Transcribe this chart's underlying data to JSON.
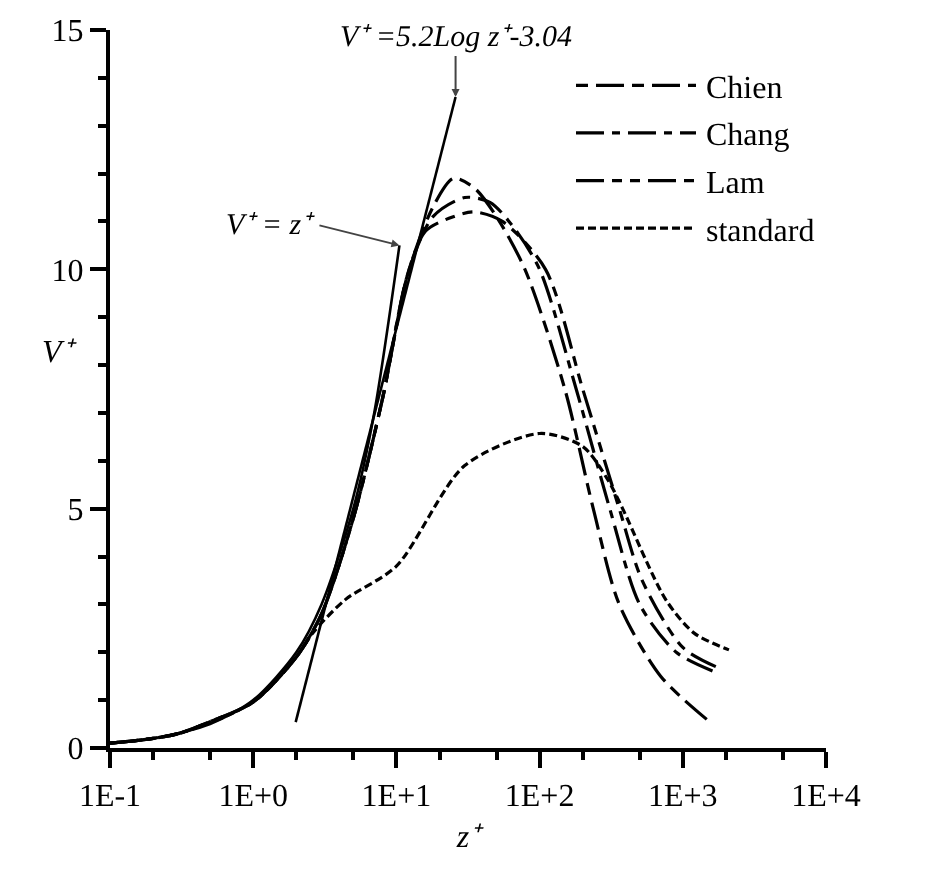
{
  "chart_data": {
    "type": "line",
    "xlabel": "z⁺",
    "ylabel": "V⁺",
    "log": "x",
    "xlim": [
      0.1,
      10000
    ],
    "ylim": [
      0,
      15
    ],
    "xticks": [
      {
        "value": 0.1,
        "label": "1E-1"
      },
      {
        "value": 1,
        "label": "1E+0"
      },
      {
        "value": 10,
        "label": "1E+1"
      },
      {
        "value": 100,
        "label": "1E+2"
      },
      {
        "value": 1000,
        "label": "1E+3"
      },
      {
        "value": 10000,
        "label": "1E+4"
      }
    ],
    "yticks": [
      0,
      5,
      10,
      15
    ],
    "grid": false,
    "legend": "top right",
    "marker": "none",
    "line_style": "dashed",
    "series": [
      {
        "name": "Chien",
        "color": "#000000",
        "x": [
          0.1,
          0.2,
          0.3,
          0.5,
          1,
          2,
          3,
          5,
          8,
          12,
          18,
          25,
          35,
          50,
          79,
          150,
          237,
          360,
          700,
          1480
        ],
        "values": [
          0.1,
          0.2,
          0.3,
          0.55,
          0.96,
          1.9,
          2.8,
          4.8,
          7.3,
          9.9,
          11.3,
          11.9,
          11.7,
          11.1,
          10,
          7.5,
          5,
          3,
          1.5,
          0.59
        ]
      },
      {
        "name": "Chang",
        "color": "#000000",
        "x": [
          0.1,
          0.2,
          0.3,
          0.5,
          1,
          2,
          3,
          5,
          8,
          12,
          18,
          30,
          45,
          65,
          100,
          180,
          309,
          500,
          900,
          1640
        ],
        "values": [
          0.1,
          0.2,
          0.3,
          0.55,
          0.96,
          1.9,
          2.8,
          4.8,
          7.3,
          9.9,
          11.1,
          11.5,
          11.4,
          10.9,
          10,
          7.5,
          5,
          3,
          2,
          1.6
        ]
      },
      {
        "name": "Lam",
        "color": "#000000",
        "x": [
          0.1,
          0.2,
          0.3,
          0.5,
          1,
          2,
          3,
          5,
          8,
          12,
          16,
          25,
          35,
          55,
          110,
          200,
          360,
          520,
          1000,
          1700
        ],
        "values": [
          0.1,
          0.2,
          0.3,
          0.55,
          0.96,
          1.9,
          2.8,
          4.8,
          7.3,
          9.9,
          10.8,
          11.1,
          11.2,
          11,
          10,
          7.5,
          5,
          3.5,
          2.1,
          1.7
        ]
      },
      {
        "name": "standard",
        "color": "#000000",
        "x": [
          0.1,
          0.3,
          1,
          2,
          2.6,
          4.4,
          10,
          30,
          100,
          200,
          300,
          380,
          760,
          1200,
          2100
        ],
        "values": [
          0.1,
          0.3,
          0.96,
          1.9,
          2.4,
          3.1,
          3.8,
          5.9,
          6.57,
          6.3,
          5.6,
          5,
          3.1,
          2.4,
          2.05
        ]
      },
      {
        "color": "#000000",
        "line_style": "solid",
        "x": [
          1.98,
          25.9
        ],
        "values": [
          0.54,
          13.6
        ]
      },
      {
        "color": "#000000",
        "line_style": "solid",
        "x": [
          0.1,
          0.2,
          0.5,
          1,
          2,
          3,
          5,
          7,
          10.5
        ],
        "values": [
          0.1,
          0.2,
          0.5,
          1,
          2,
          3,
          5,
          7,
          10.5
        ]
      }
    ],
    "annotations": [
      {
        "text": "V⁺ =5.2Log z⁺-3.04",
        "x": 25.9,
        "y": 13.6
      },
      {
        "text": "V⁺ = z⁺",
        "x": 10.5,
        "y": 10.5
      }
    ]
  }
}
